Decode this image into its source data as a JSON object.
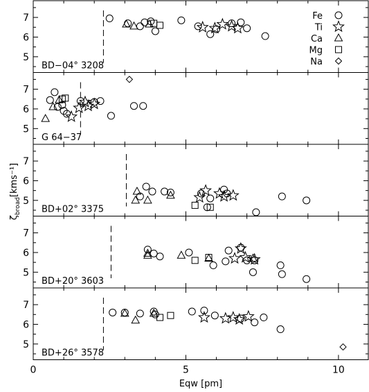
{
  "chart_data": {
    "type": "scatter",
    "xlabel": "Eqw [pm]",
    "ylabel_main": "ζ",
    "ylabel_sub": "broad",
    "ylabel_unit": "[kms⁻¹]",
    "xlim": [
      0,
      11
    ],
    "ylim": [
      4.2,
      7.85
    ],
    "xticks": [
      0,
      5,
      10
    ],
    "xtick_labels": [
      "0",
      "5",
      "10"
    ],
    "xticks_minor": [
      1,
      2,
      3,
      4,
      6,
      7,
      8,
      9
    ],
    "yticks": [
      5,
      6,
      7
    ],
    "ytick_labels": [
      "5",
      "6",
      "7"
    ],
    "legend": [
      {
        "label": "Fe",
        "marker": "circle"
      },
      {
        "label": "Ti",
        "marker": "star"
      },
      {
        "label": "Ca",
        "marker": "triangle"
      },
      {
        "label": "Mg",
        "marker": "square"
      },
      {
        "label": "Na",
        "marker": "diamond"
      }
    ],
    "legend_location": "top-right of first panel",
    "panels": [
      {
        "label": "BD−04° 3208",
        "cutoff_eqw": 2.3,
        "Fe": [
          [
            2.5,
            6.95
          ],
          [
            3.1,
            6.7
          ],
          [
            3.5,
            6.55
          ],
          [
            3.65,
            6.75
          ],
          [
            3.85,
            6.8
          ],
          [
            4.0,
            6.3
          ],
          [
            4.85,
            6.85
          ],
          [
            5.4,
            6.55
          ],
          [
            5.8,
            6.15
          ],
          [
            6.0,
            6.4
          ],
          [
            6.5,
            6.7
          ],
          [
            6.8,
            6.75
          ],
          [
            7.0,
            6.45
          ],
          [
            7.6,
            6.05
          ]
        ],
        "Ti": [
          [
            5.55,
            6.5
          ],
          [
            5.95,
            6.45
          ],
          [
            6.2,
            6.65
          ],
          [
            6.5,
            6.55
          ],
          [
            6.7,
            6.45
          ]
        ],
        "Ca": [
          [
            3.05,
            6.65
          ],
          [
            3.3,
            6.55
          ],
          [
            3.8,
            6.65
          ]
        ],
        "Mg": [
          [
            3.95,
            6.7
          ],
          [
            4.15,
            6.6
          ]
        ],
        "Na": []
      },
      {
        "label": "G 64−37",
        "cutoff_eqw": 1.55,
        "Fe": [
          [
            0.55,
            6.45
          ],
          [
            0.7,
            6.85
          ],
          [
            0.8,
            6.1
          ],
          [
            0.95,
            6.2
          ],
          [
            1.0,
            5.9
          ],
          [
            1.1,
            5.75
          ],
          [
            1.55,
            6.4
          ],
          [
            2.0,
            6.35
          ],
          [
            2.2,
            6.4
          ],
          [
            2.55,
            5.65
          ],
          [
            3.3,
            6.15
          ],
          [
            3.6,
            6.15
          ]
        ],
        "Ti": [
          [
            1.25,
            5.6
          ],
          [
            1.5,
            6.05
          ],
          [
            1.7,
            6.35
          ],
          [
            1.8,
            6.15
          ],
          [
            2.0,
            6.25
          ]
        ],
        "Ca": [
          [
            0.4,
            5.5
          ],
          [
            0.65,
            6.1
          ],
          [
            0.85,
            6.45
          ]
        ],
        "Mg": [
          [
            0.95,
            6.5
          ],
          [
            1.05,
            6.55
          ]
        ],
        "Na": [
          [
            3.15,
            7.5
          ]
        ]
      },
      {
        "label": "BD+02° 3375",
        "cutoff_eqw": 3.05,
        "Fe": [
          [
            3.5,
            5.2
          ],
          [
            3.7,
            5.7
          ],
          [
            3.9,
            5.45
          ],
          [
            4.3,
            5.45
          ],
          [
            4.5,
            5.4
          ],
          [
            5.5,
            5.35
          ],
          [
            5.7,
            4.65
          ],
          [
            5.8,
            5.1
          ],
          [
            6.25,
            5.55
          ],
          [
            6.35,
            5.35
          ],
          [
            7.3,
            4.4
          ],
          [
            8.15,
            5.2
          ],
          [
            8.95,
            5.0
          ]
        ],
        "Ti": [
          [
            5.45,
            5.15
          ],
          [
            5.65,
            5.5
          ],
          [
            6.1,
            5.35
          ],
          [
            6.25,
            5.2
          ],
          [
            6.55,
            5.25
          ]
        ],
        "Ca": [
          [
            3.35,
            5.0
          ],
          [
            3.4,
            5.45
          ],
          [
            3.75,
            5.0
          ],
          [
            4.5,
            5.25
          ]
        ],
        "Mg": [
          [
            5.3,
            4.75
          ],
          [
            5.8,
            4.65
          ]
        ],
        "Na": []
      },
      {
        "label": "BD+20° 3603",
        "cutoff_eqw": 2.55,
        "Fe": [
          [
            3.75,
            6.15
          ],
          [
            3.95,
            5.95
          ],
          [
            4.15,
            5.8
          ],
          [
            5.1,
            6.0
          ],
          [
            5.9,
            5.35
          ],
          [
            6.3,
            5.55
          ],
          [
            6.4,
            6.1
          ],
          [
            6.8,
            6.25
          ],
          [
            7.0,
            5.6
          ],
          [
            7.2,
            5.0
          ],
          [
            7.25,
            5.6
          ],
          [
            8.1,
            5.35
          ],
          [
            8.15,
            4.9
          ],
          [
            8.95,
            4.65
          ]
        ],
        "Ti": [
          [
            6.6,
            5.7
          ],
          [
            6.8,
            6.2
          ],
          [
            6.95,
            5.75
          ],
          [
            7.25,
            5.65
          ]
        ],
        "Ca": [
          [
            3.75,
            5.95
          ],
          [
            3.75,
            5.85
          ],
          [
            4.85,
            5.85
          ],
          [
            5.75,
            5.7
          ],
          [
            7.2,
            5.7
          ]
        ],
        "Mg": [
          [
            5.3,
            5.6
          ],
          [
            5.75,
            5.75
          ]
        ],
        "Na": []
      },
      {
        "label": "BD+26° 3578",
        "cutoff_eqw": 2.3,
        "Fe": [
          [
            2.6,
            6.6
          ],
          [
            3.0,
            6.6
          ],
          [
            3.5,
            6.55
          ],
          [
            3.95,
            6.65
          ],
          [
            4.0,
            6.5
          ],
          [
            5.2,
            6.65
          ],
          [
            5.6,
            6.7
          ],
          [
            5.95,
            6.45
          ],
          [
            6.8,
            6.3
          ],
          [
            7.25,
            6.1
          ],
          [
            7.55,
            6.35
          ],
          [
            8.1,
            5.75
          ]
        ],
        "Ti": [
          [
            5.6,
            6.35
          ],
          [
            6.3,
            6.3
          ],
          [
            6.55,
            6.35
          ],
          [
            6.75,
            6.25
          ],
          [
            7.05,
            6.4
          ]
        ],
        "Ca": [
          [
            3.0,
            6.55
          ],
          [
            3.35,
            6.2
          ],
          [
            3.95,
            6.55
          ]
        ],
        "Mg": [
          [
            4.15,
            6.35
          ],
          [
            4.5,
            6.45
          ]
        ],
        "Na": [
          [
            10.15,
            4.85
          ]
        ]
      }
    ]
  }
}
